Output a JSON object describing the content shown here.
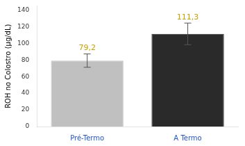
{
  "chart_data": {
    "type": "bar",
    "categories": [
      "Pré-Termo",
      "A Termo"
    ],
    "values": [
      79.2,
      111.3
    ],
    "errors": [
      8.0,
      13.0
    ],
    "value_labels": [
      "79,2",
      "111,3"
    ],
    "data_labels": true,
    "colors": [
      "#c0c0c0",
      "#2a2a2a"
    ],
    "ylabel": "ROH no Colostro (μg/dL)",
    "ylim": [
      0,
      145
    ],
    "yticks": [
      0,
      20,
      40,
      60,
      80,
      100,
      120,
      140
    ],
    "grid": false
  }
}
